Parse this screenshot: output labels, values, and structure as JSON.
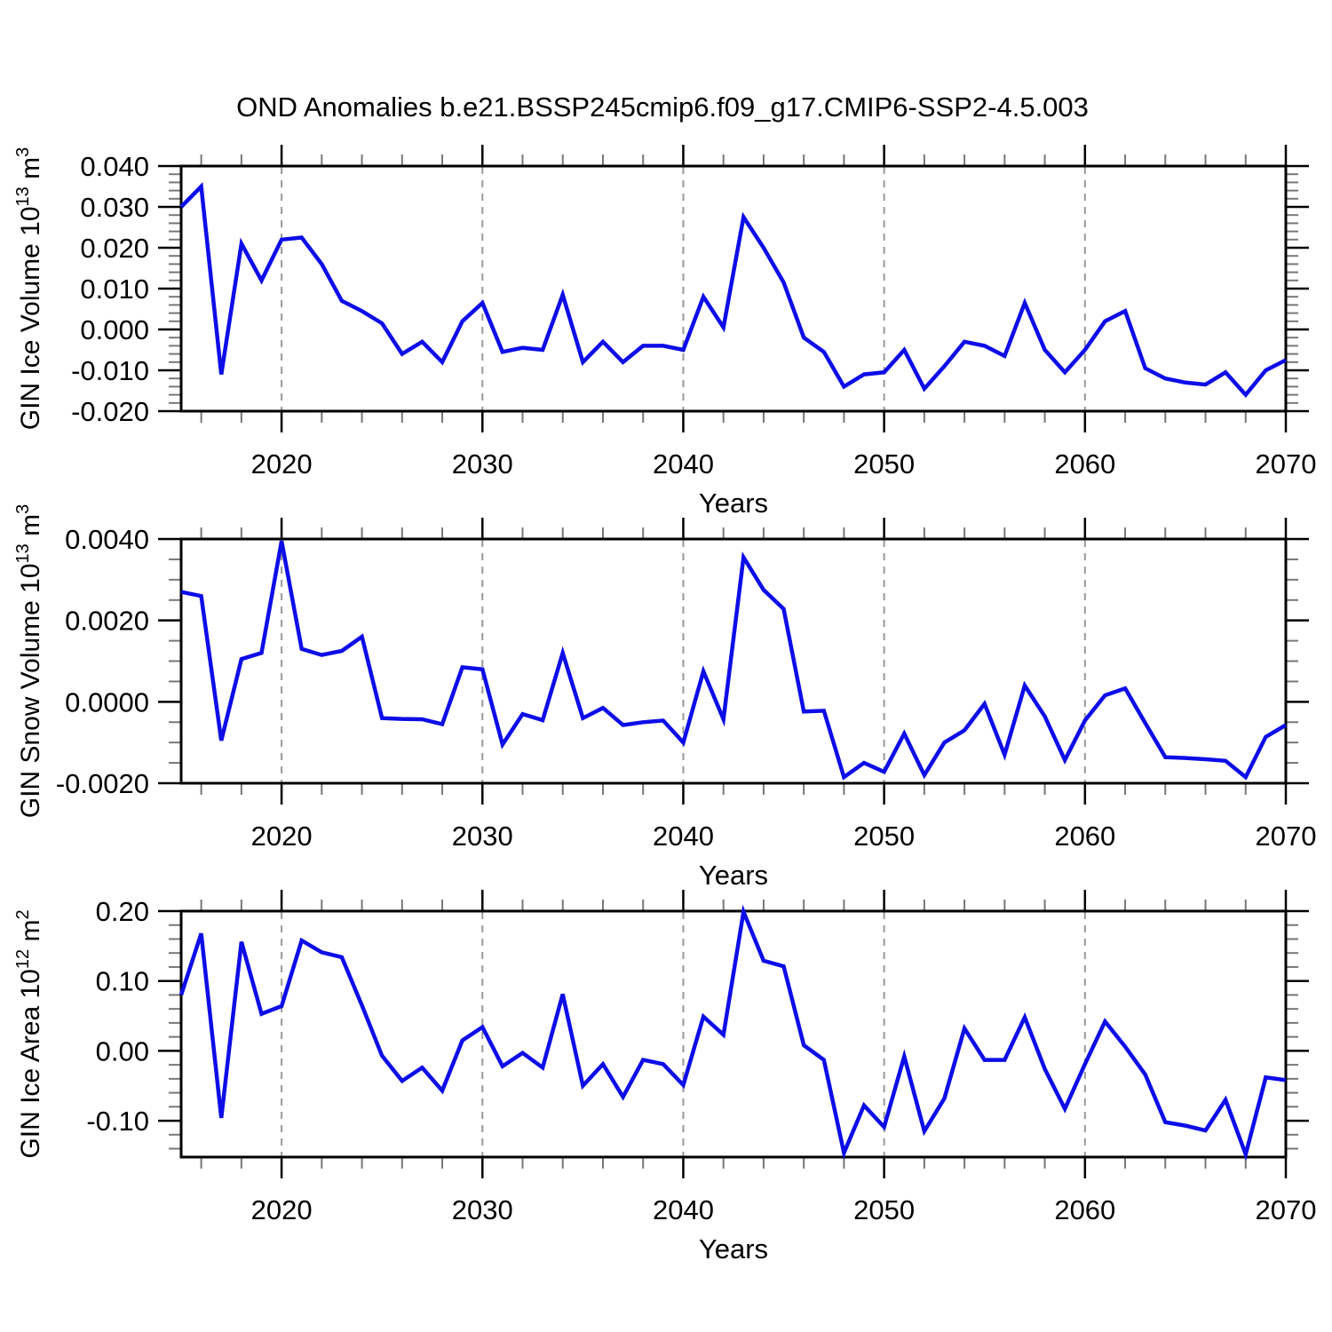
{
  "title": "OND Anomalies b.e21.BSSP245cmip6.f09_g17.CMIP6-SSP2-4.5.003",
  "style": {
    "line_color": "#0d0de8",
    "grid_color": "#999999",
    "axis_color": "#000000",
    "minor_tick_color": "#777777",
    "background": "#ffffff"
  },
  "x_axis": {
    "label": "Years",
    "min": 2015,
    "max": 2070,
    "minor_interval_years": 2,
    "grid_years": [
      2020,
      2030,
      2040,
      2050,
      2060
    ],
    "major_ticks": [
      {
        "value": 2020,
        "label": "2020"
      },
      {
        "value": 2030,
        "label": "2030"
      },
      {
        "value": 2040,
        "label": "2040"
      },
      {
        "value": 2050,
        "label": "2050"
      },
      {
        "value": 2060,
        "label": "2060"
      },
      {
        "value": 2070,
        "label": "2070"
      }
    ]
  },
  "chart_data": [
    {
      "type": "line",
      "name": "gin-ice-volume",
      "xlabel": "Years",
      "ylabel": "GIN Ice Volume 10¹³ m³",
      "ylabel_parts": [
        [
          "t",
          "GIN Ice Volume 10"
        ],
        [
          "s",
          "13"
        ],
        [
          "t",
          " m"
        ],
        [
          "s",
          "3"
        ]
      ],
      "ylim": [
        -0.02,
        0.04
      ],
      "ytick_values": [
        0.04,
        0.03,
        0.02,
        0.01,
        0.0,
        -0.01,
        -0.02
      ],
      "ytick_labels": [
        "0.040",
        "0.030",
        "0.020",
        "0.010",
        "0.000",
        "-0.010",
        "-0.020"
      ],
      "yminor_step": 0.002,
      "x": [
        2015,
        2016,
        2017,
        2018,
        2019,
        2020,
        2021,
        2022,
        2023,
        2024,
        2025,
        2026,
        2027,
        2028,
        2029,
        2030,
        2031,
        2032,
        2033,
        2034,
        2035,
        2036,
        2037,
        2038,
        2039,
        2040,
        2041,
        2042,
        2043,
        2044,
        2045,
        2046,
        2047,
        2048,
        2049,
        2050,
        2051,
        2052,
        2053,
        2054,
        2055,
        2056,
        2057,
        2058,
        2059,
        2060,
        2061,
        2062,
        2063,
        2064,
        2065,
        2066,
        2067,
        2068,
        2069,
        2070
      ],
      "values": [
        0.03,
        0.035,
        -0.011,
        0.021,
        0.012,
        0.022,
        0.0225,
        0.016,
        0.007,
        0.0045,
        0.0015,
        -0.006,
        -0.003,
        -0.008,
        0.002,
        0.0065,
        -0.0055,
        -0.0045,
        -0.005,
        0.0085,
        -0.008,
        -0.003,
        -0.008,
        -0.004,
        -0.004,
        -0.005,
        0.008,
        0.0005,
        0.0275,
        0.02,
        0.0115,
        -0.002,
        -0.0055,
        -0.014,
        -0.011,
        -0.0105,
        -0.005,
        -0.0145,
        -0.009,
        -0.003,
        -0.004,
        -0.0065,
        0.0065,
        -0.005,
        -0.0105,
        -0.005,
        0.002,
        0.0045,
        -0.0095,
        -0.012,
        -0.013,
        -0.0135,
        -0.0105,
        -0.016,
        -0.01,
        -0.0075
      ]
    },
    {
      "type": "line",
      "name": "gin-snow-volume",
      "xlabel": "Years",
      "ylabel": "GIN Snow Volume 10¹³ m³",
      "ylabel_parts": [
        [
          "t",
          "GIN Snow Volume 10"
        ],
        [
          "s",
          "13"
        ],
        [
          "t",
          " m"
        ],
        [
          "s",
          "3"
        ]
      ],
      "ylim": [
        -0.002,
        0.004
      ],
      "ytick_values": [
        0.004,
        0.002,
        0.0,
        -0.002
      ],
      "ytick_labels": [
        "0.0040",
        "0.0020",
        "0.0000",
        "-0.0020"
      ],
      "yminor_step": 0.0005,
      "x": [
        2015,
        2016,
        2017,
        2018,
        2019,
        2020,
        2021,
        2022,
        2023,
        2024,
        2025,
        2026,
        2027,
        2028,
        2029,
        2030,
        2031,
        2032,
        2033,
        2034,
        2035,
        2036,
        2037,
        2038,
        2039,
        2040,
        2041,
        2042,
        2043,
        2044,
        2045,
        2046,
        2047,
        2048,
        2049,
        2050,
        2051,
        2052,
        2053,
        2054,
        2055,
        2056,
        2057,
        2058,
        2059,
        2060,
        2061,
        2062,
        2063,
        2064,
        2065,
        2066,
        2067,
        2068,
        2069,
        2070
      ],
      "values": [
        0.0027,
        0.0026,
        -0.00095,
        0.00105,
        0.0012,
        0.00395,
        0.0013,
        0.00115,
        0.00125,
        0.0016,
        -0.0004,
        -0.00042,
        -0.00043,
        -0.00055,
        0.00085,
        0.0008,
        -0.00105,
        -0.0003,
        -0.00045,
        0.0012,
        -0.0004,
        -0.00015,
        -0.00057,
        -0.0005,
        -0.00046,
        -0.001,
        0.00075,
        -0.00043,
        0.00355,
        0.00275,
        0.00228,
        -0.00024,
        -0.00022,
        -0.00185,
        -0.0015,
        -0.00172,
        -0.00078,
        -0.0018,
        -0.001,
        -0.0007,
        -5e-05,
        -0.0013,
        0.0004,
        -0.00036,
        -0.00143,
        -0.00046,
        0.00016,
        0.00033,
        -0.00052,
        -0.00136,
        -0.00138,
        -0.00141,
        -0.00145,
        -0.00185,
        -0.00086,
        -0.00057
      ]
    },
    {
      "type": "line",
      "name": "gin-ice-area",
      "xlabel": "Years",
      "ylabel": "GIN Ice Area 10¹² m²",
      "ylabel_parts": [
        [
          "t",
          "GIN Ice Area 10"
        ],
        [
          "s",
          "12"
        ],
        [
          "t",
          " m"
        ],
        [
          "s",
          "2"
        ]
      ],
      "ylim": [
        -0.152,
        0.2
      ],
      "ytick_values": [
        0.2,
        0.1,
        0.0,
        -0.1
      ],
      "ytick_labels": [
        "0.20",
        "0.10",
        "0.00",
        "-0.10"
      ],
      "yminor_step": 0.02,
      "x": [
        2015,
        2016,
        2017,
        2018,
        2019,
        2020,
        2021,
        2022,
        2023,
        2024,
        2025,
        2026,
        2027,
        2028,
        2029,
        2030,
        2031,
        2032,
        2033,
        2034,
        2035,
        2036,
        2037,
        2038,
        2039,
        2040,
        2041,
        2042,
        2043,
        2044,
        2045,
        2046,
        2047,
        2048,
        2049,
        2050,
        2051,
        2052,
        2053,
        2054,
        2055,
        2056,
        2057,
        2058,
        2059,
        2060,
        2061,
        2062,
        2063,
        2064,
        2065,
        2066,
        2067,
        2068,
        2069,
        2070
      ],
      "values": [
        0.08,
        0.168,
        -0.096,
        0.156,
        0.053,
        0.064,
        0.158,
        0.141,
        0.134,
        0.065,
        -0.007,
        -0.043,
        -0.024,
        -0.057,
        0.015,
        0.034,
        -0.022,
        -0.003,
        -0.024,
        0.081,
        -0.05,
        -0.019,
        -0.066,
        -0.013,
        -0.019,
        -0.049,
        0.049,
        0.023,
        0.199,
        0.129,
        0.121,
        0.008,
        -0.013,
        -0.146,
        -0.078,
        -0.109,
        -0.008,
        -0.115,
        -0.068,
        0.032,
        -0.013,
        -0.013,
        0.048,
        -0.026,
        -0.083,
        -0.019,
        0.042,
        0.006,
        -0.034,
        -0.102,
        -0.107,
        -0.114,
        -0.07,
        -0.148,
        -0.038,
        -0.042
      ]
    }
  ]
}
